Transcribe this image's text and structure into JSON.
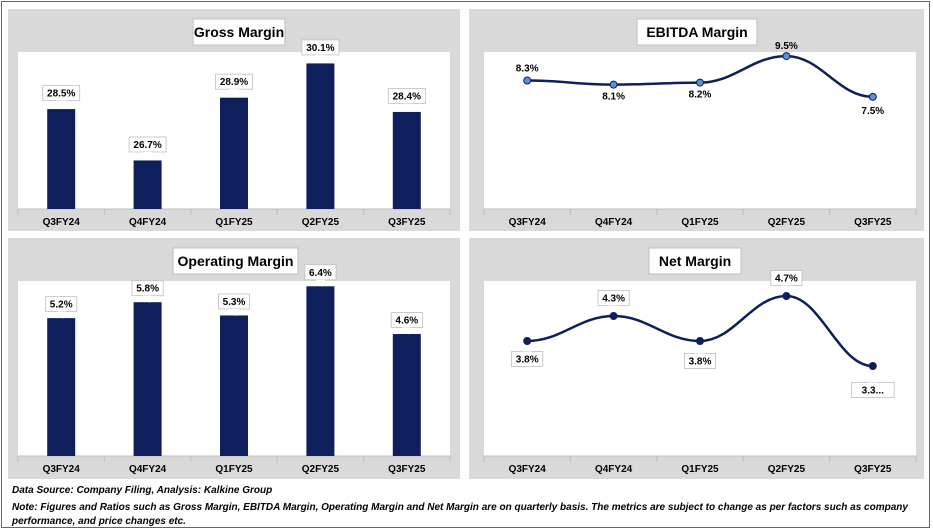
{
  "chart_data": [
    {
      "type": "bar",
      "title": "Gross Margin",
      "categories": [
        "Q3FY24",
        "Q4FY24",
        "Q1FY25",
        "Q2FY25",
        "Q3FY25"
      ],
      "values": [
        28.5,
        26.7,
        28.9,
        30.1,
        28.4
      ],
      "labels": [
        "28.5%",
        "26.7%",
        "28.9%",
        "30.1%",
        "28.4%"
      ],
      "ylim": [
        25.0,
        30.5
      ],
      "color": "#0e1f5b"
    },
    {
      "type": "line",
      "title": "EBITDA Margin",
      "categories": [
        "Q3FY24",
        "Q4FY24",
        "Q1FY25",
        "Q2FY25",
        "Q3FY25"
      ],
      "values": [
        8.3,
        8.1,
        8.2,
        9.5,
        7.5
      ],
      "labels": [
        "8.3%",
        "8.1%",
        "8.2%",
        "9.5%",
        "7.5%"
      ],
      "ylim": [
        2.0,
        9.7
      ],
      "color": "#0e1f5b",
      "marker_color": "#5b8fd6"
    },
    {
      "type": "bar",
      "title": "Operating Margin",
      "categories": [
        "Q3FY24",
        "Q4FY24",
        "Q1FY25",
        "Q2FY25",
        "Q3FY25"
      ],
      "values": [
        5.2,
        5.8,
        5.3,
        6.4,
        4.6
      ],
      "labels": [
        "5.2%",
        "5.8%",
        "5.3%",
        "6.4%",
        "4.6%"
      ],
      "ylim": [
        0,
        6.6
      ],
      "color": "#0e1f5b"
    },
    {
      "type": "line",
      "title": "Net Margin",
      "categories": [
        "Q3FY24",
        "Q4FY24",
        "Q1FY25",
        "Q2FY25",
        "Q3FY25"
      ],
      "values": [
        3.8,
        4.3,
        3.8,
        4.7,
        3.3
      ],
      "labels": [
        "3.8%",
        "4.3%",
        "3.8%",
        "4.7%",
        "3.3..."
      ],
      "ylim": [
        1.5,
        5.0
      ],
      "color": "#0e1f5b",
      "marker_color": "#0e1f5b"
    }
  ],
  "footer": {
    "source": "Data Source: Company Filing, Analysis: Kalkine Group",
    "note_line1": "Note: Figures and Ratios such as Gross Margin, EBITDA Margin, Operating Margin and Net Margin are on quarterly basis. The metrics are subject to change as per factors such as company",
    "note_line2": "performance, and price changes etc."
  }
}
